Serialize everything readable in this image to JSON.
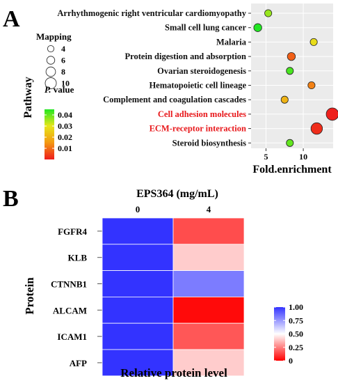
{
  "panel_a": {
    "letter": "A",
    "mapping_title": "Mapping",
    "pvalue_title_p": "P.",
    "pvalue_title_rest": " value",
    "chart_data": {
      "type": "scatter",
      "title": "",
      "xlabel": "Fold.enrichment",
      "ylabel": "Pathway",
      "xlim": [
        3,
        14
      ],
      "xticks": [
        "5",
        "10"
      ],
      "xtick_values": [
        5,
        10
      ],
      "grid": true,
      "categories": [
        "Arrhythmogenic right ventricular cardiomyopathy",
        "Small cell lung cancer",
        "Malaria",
        "Protein digestion and absorption",
        "Ovarian steroidogenesis",
        "Hematopoietic cell lineage",
        "Complement and coagulation cascades",
        "Cell adhesion molecules",
        "ECM-receptor interaction",
        "Steroid biosynthesis"
      ],
      "highlighted": [
        "Cell adhesion molecules",
        "ECM-receptor interaction"
      ],
      "highlight_color": "#e8191c",
      "points": [
        {
          "pathway": "Arrhythmogenic right ventricular cardiomyopathy",
          "fold_enrichment": 5.3,
          "mapping": 4,
          "p_value": 0.036
        },
        {
          "pathway": "Small cell lung cancer",
          "fold_enrichment": 3.9,
          "mapping": 5,
          "p_value": 0.045
        },
        {
          "pathway": "Malaria",
          "fold_enrichment": 11.4,
          "mapping": 4,
          "p_value": 0.028
        },
        {
          "pathway": "Protein digestion and absorption",
          "fold_enrichment": 8.4,
          "mapping": 5,
          "p_value": 0.008
        },
        {
          "pathway": "Ovarian steroidogenesis",
          "fold_enrichment": 8.2,
          "mapping": 4,
          "p_value": 0.042
        },
        {
          "pathway": "Hematopoietic cell lineage",
          "fold_enrichment": 11.1,
          "mapping": 4,
          "p_value": 0.012
        },
        {
          "pathway": "Complement and coagulation cascades",
          "fold_enrichment": 7.5,
          "mapping": 4,
          "p_value": 0.02
        },
        {
          "pathway": "Cell adhesion molecules",
          "fold_enrichment": 13.9,
          "mapping": 10,
          "p_value": 0.0005
        },
        {
          "pathway": "ECM-receptor interaction",
          "fold_enrichment": 11.8,
          "mapping": 9,
          "p_value": 0.002
        },
        {
          "pathway": "Steroid biosynthesis",
          "fold_enrichment": 8.2,
          "mapping": 4,
          "p_value": 0.04
        }
      ],
      "size_legend": [
        {
          "label": "4",
          "value": 4
        },
        {
          "label": "6",
          "value": 6
        },
        {
          "label": "8",
          "value": 8
        },
        {
          "label": "10",
          "value": 10
        }
      ],
      "color_legend": {
        "ticks": [
          "0.04",
          "0.03",
          "0.02",
          "0.01"
        ],
        "tick_values": [
          0.04,
          0.03,
          0.02,
          0.01
        ],
        "range": [
          0,
          0.045
        ],
        "colors": [
          "#ee1c1c",
          "#f29a10",
          "#e8e41a",
          "#2be62b"
        ]
      },
      "background_color": "#ebebeb"
    }
  },
  "panel_b": {
    "letter": "B",
    "chart_data": {
      "type": "heatmap",
      "title": "EPS364 (mg/mL)",
      "xlabel": "Relative protein level",
      "ylabel": "Protein",
      "columns": [
        "0",
        "4"
      ],
      "rows": [
        "FGFR4",
        "KLB",
        "CTNNB1",
        "ALCAM",
        "ICAM1",
        "AFP"
      ],
      "values": [
        [
          1.0,
          0.15
        ],
        [
          1.0,
          0.4
        ],
        [
          1.0,
          0.82
        ],
        [
          1.0,
          0.02
        ],
        [
          1.0,
          0.17
        ],
        [
          1.0,
          0.4
        ]
      ],
      "colorbar": {
        "ticks": [
          "1.00",
          "0.75",
          "0.50",
          "0.25",
          "0"
        ],
        "tick_values": [
          1.0,
          0.75,
          0.5,
          0.25,
          0
        ],
        "low_color": "#ff0000",
        "mid_color": "#ffffff",
        "high_color": "#3333ff"
      }
    }
  }
}
